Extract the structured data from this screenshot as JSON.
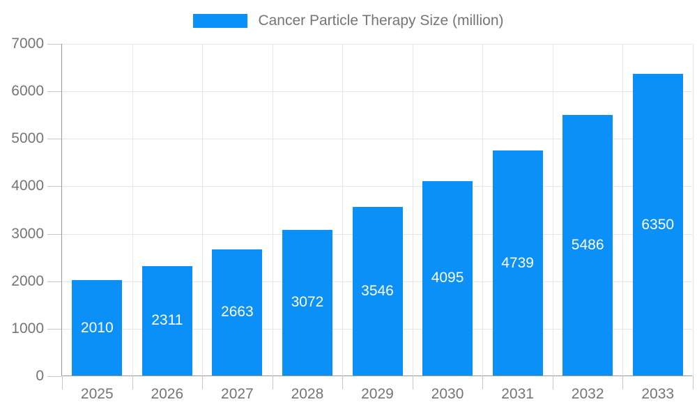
{
  "legend": {
    "label": "Cancer Particle Therapy Size (million)"
  },
  "chart_data": {
    "type": "bar",
    "title": "Cancer Particle Therapy Size (million)",
    "categories": [
      "2025",
      "2026",
      "2027",
      "2028",
      "2029",
      "2030",
      "2031",
      "2032",
      "2033"
    ],
    "values": [
      2010,
      2311,
      2663,
      3072,
      3546,
      4095,
      4739,
      5486,
      6350
    ],
    "xlabel": "",
    "ylabel": "",
    "ylim": [
      0,
      7000
    ],
    "ytick_interval": 1000,
    "ytick_labels": [
      "0",
      "1000",
      "2000",
      "3000",
      "4000",
      "5000",
      "6000",
      "7000"
    ],
    "grid": true,
    "legend_position": "top",
    "value_labels": "inside-center",
    "colors": {
      "bar": "#0a90f7",
      "value_label": "#ffffff",
      "axis_line": "#999999",
      "gridline": "#e6e6e6",
      "tick": "#c6c6c6",
      "axis_text": "#757575"
    }
  }
}
